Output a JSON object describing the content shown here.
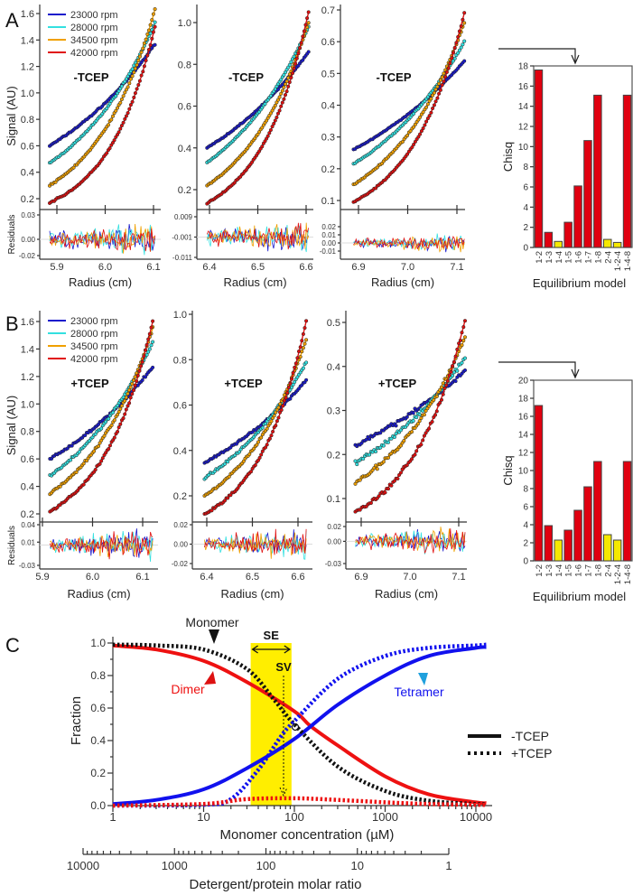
{
  "panels": {
    "a": "A",
    "b": "B",
    "c": "C"
  },
  "chart_data": [
    {
      "id": "A1",
      "type": "scatter",
      "panel": "A",
      "annotation": "-TCEP",
      "xlabel": "Radius (cm)",
      "ylabel": "Signal (AU)",
      "residual_label": "Residuals",
      "xticks": [
        "5.9",
        "6.0",
        "6.1"
      ],
      "yticks": [
        "0.2",
        "0.4",
        "0.6",
        "0.8",
        "1.0",
        "1.2",
        "1.4",
        "1.6"
      ],
      "resid_ticks": [
        "0.03",
        "0.00",
        "-0.02"
      ],
      "r_range": [
        5.885,
        6.103
      ],
      "series": [
        {
          "name": "23000 rpm",
          "color": "#1a1acc",
          "start": 0.6,
          "end": 1.37
        },
        {
          "name": "28000 rpm",
          "color": "#33e0e0",
          "start": 0.47,
          "end": 1.53
        },
        {
          "name": "34500 rpm",
          "color": "#f0a000",
          "start": 0.3,
          "end": 1.63
        },
        {
          "name": "42000 rpm",
          "color": "#e01010",
          "start": 0.17,
          "end": 1.5
        }
      ]
    },
    {
      "id": "A2",
      "type": "scatter",
      "panel": "A",
      "annotation": "-TCEP",
      "xlabel": "Radius (cm)",
      "xticks": [
        "6.4",
        "6.5",
        "6.6"
      ],
      "yticks": [
        "0.2",
        "0.4",
        "0.6",
        "0.8",
        "1.0"
      ],
      "resid_ticks": [
        "0.009",
        "-0.001",
        "-0.011"
      ],
      "r_range": [
        6.395,
        6.605
      ],
      "series": [
        {
          "name": "23000 rpm",
          "color": "#1a1acc",
          "start": 0.4,
          "end": 0.86
        },
        {
          "name": "28000 rpm",
          "color": "#33e0e0",
          "start": 0.33,
          "end": 0.98
        },
        {
          "name": "34500 rpm",
          "color": "#f0a000",
          "start": 0.22,
          "end": 1.0
        },
        {
          "name": "42000 rpm",
          "color": "#e01010",
          "start": 0.135,
          "end": 1.05
        }
      ]
    },
    {
      "id": "A3",
      "type": "scatter",
      "panel": "A",
      "annotation": "-TCEP",
      "xlabel": "Radius (cm)",
      "xticks": [
        "6.9",
        "7.0",
        "7.1"
      ],
      "yticks": [
        "0.1",
        "0.2",
        "0.3",
        "0.4",
        "0.5",
        "0.6",
        "0.7"
      ],
      "resid_ticks": [
        "0.02",
        "0.01",
        "0.00",
        "-0.01"
      ],
      "r_range": [
        6.89,
        7.115
      ],
      "series": [
        {
          "name": "23000 rpm",
          "color": "#1a1acc",
          "start": 0.26,
          "end": 0.54
        },
        {
          "name": "28000 rpm",
          "color": "#33e0e0",
          "start": 0.215,
          "end": 0.6
        },
        {
          "name": "34500 rpm",
          "color": "#f0a000",
          "start": 0.15,
          "end": 0.66
        },
        {
          "name": "42000 rpm",
          "color": "#e01010",
          "start": 0.095,
          "end": 0.69
        }
      ]
    },
    {
      "id": "B1",
      "type": "scatter",
      "panel": "B",
      "annotation": "+TCEP",
      "xlabel": "Radius (cm)",
      "ylabel": "Signal (AU)",
      "residual_label": "Residuals",
      "xticks": [
        "5.9",
        "6.0",
        "6.1"
      ],
      "yticks": [
        "0.2",
        "0.4",
        "0.6",
        "0.8",
        "1.0",
        "1.2",
        "1.4",
        "1.6"
      ],
      "resid_ticks": [
        "0.04",
        "0.01",
        "-0.03"
      ],
      "r_range": [
        5.915,
        6.12
      ],
      "series": [
        {
          "name": "23000 rpm",
          "color": "#1a1acc",
          "start": 0.6,
          "end": 1.27
        },
        {
          "name": "28000 rpm",
          "color": "#33e0e0",
          "start": 0.48,
          "end": 1.45
        },
        {
          "name": "34500 rpm",
          "color": "#f0a000",
          "start": 0.35,
          "end": 1.55
        },
        {
          "name": "42000 rpm",
          "color": "#e01010",
          "start": 0.22,
          "end": 1.6
        }
      ]
    },
    {
      "id": "B2",
      "type": "scatter",
      "panel": "B",
      "annotation": "+TCEP",
      "xlabel": "Radius (cm)",
      "xticks": [
        "6.4",
        "6.5",
        "6.6"
      ],
      "yticks": [
        "0.2",
        "0.4",
        "0.6",
        "0.8",
        "1.0"
      ],
      "resid_ticks": [
        "0.02",
        "0.00",
        "-0.02"
      ],
      "r_range": [
        6.395,
        6.618
      ],
      "series": [
        {
          "name": "23000 rpm",
          "color": "#1a1acc",
          "start": 0.345,
          "end": 0.71
        },
        {
          "name": "28000 rpm",
          "color": "#33e0e0",
          "start": 0.28,
          "end": 0.79
        },
        {
          "name": "34500 rpm",
          "color": "#f0a000",
          "start": 0.2,
          "end": 0.89
        },
        {
          "name": "42000 rpm",
          "color": "#e01010",
          "start": 0.12,
          "end": 0.97
        }
      ]
    },
    {
      "id": "B3",
      "type": "scatter",
      "panel": "B",
      "annotation": "+TCEP",
      "xlabel": "Radius (cm)",
      "xticks": [
        "6.9",
        "7.0",
        "7.1"
      ],
      "yticks": [
        "0.1",
        "0.2",
        "0.3",
        "0.4",
        "0.5"
      ],
      "resid_ticks": [
        "0.02",
        "0.00",
        "-0.03"
      ],
      "r_range": [
        6.888,
        7.113
      ],
      "series": [
        {
          "name": "23000 rpm",
          "color": "#1a1acc",
          "start": 0.22,
          "end": 0.39
        },
        {
          "name": "28000 rpm",
          "color": "#33e0e0",
          "start": 0.18,
          "end": 0.42
        },
        {
          "name": "34500 rpm",
          "color": "#f0a000",
          "start": 0.135,
          "end": 0.465
        },
        {
          "name": "42000 rpm",
          "color": "#e01010",
          "start": 0.07,
          "end": 0.505
        }
      ]
    },
    {
      "id": "barA",
      "type": "bar",
      "panel": "A",
      "ylabel": "Chisq",
      "xlabel": "Equilibrium model",
      "ylim": [
        0,
        18
      ],
      "yticks": [
        "0",
        "2",
        "4",
        "6",
        "8",
        "10",
        "12",
        "14",
        "16",
        "18"
      ],
      "categories": [
        "1-2",
        "1-3",
        "1-4",
        "1-5",
        "1-6",
        "1-7",
        "1-8",
        "2-4",
        "1-2-4",
        "1-4-8"
      ],
      "values": [
        17.6,
        1.5,
        0.6,
        2.5,
        6.1,
        10.6,
        15.1,
        0.8,
        0.5,
        15.1
      ],
      "colors": [
        "#e00010",
        "#e00010",
        "#f5e800",
        "#e00010",
        "#e00010",
        "#e00010",
        "#e00010",
        "#f5e800",
        "#f5e800",
        "#e00010"
      ]
    },
    {
      "id": "barB",
      "type": "bar",
      "panel": "B",
      "ylabel": "Chisq",
      "xlabel": "Equilibrium model",
      "ylim": [
        0,
        20
      ],
      "yticks": [
        "0",
        "2",
        "4",
        "6",
        "8",
        "10",
        "12",
        "14",
        "16",
        "18",
        "20"
      ],
      "categories": [
        "1-2",
        "1-3",
        "1-4",
        "1-5",
        "1-6",
        "1-7",
        "1-8",
        "2-4",
        "1-2-4",
        "1-4-8"
      ],
      "values": [
        17.2,
        3.9,
        2.3,
        3.4,
        5.6,
        8.2,
        11.0,
        2.9,
        2.3,
        11.0
      ],
      "colors": [
        "#e00010",
        "#e00010",
        "#f5e800",
        "#e00010",
        "#e00010",
        "#e00010",
        "#e00010",
        "#f5e800",
        "#f5e800",
        "#e00010"
      ]
    },
    {
      "id": "C",
      "type": "line",
      "panel": "C",
      "xscale": "log",
      "xlim": [
        1,
        13000
      ],
      "ylim": [
        0,
        1.0
      ],
      "xlabel": "Monomer concentration (µM)",
      "ylabel": "Fraction",
      "xticks": [
        "1",
        "10",
        "100",
        "1000",
        "10000"
      ],
      "yticks": [
        "0.0",
        "0.2",
        "0.4",
        "0.6",
        "0.8",
        "1.0"
      ],
      "secondary_axis": {
        "label": "Detergent/protein molar ratio",
        "ticks": [
          "10000",
          "1000",
          "100",
          "10",
          "1"
        ]
      },
      "band": {
        "label": "SE",
        "range": [
          33,
          93
        ],
        "color": "#ffee00"
      },
      "sv": {
        "label": "SV",
        "conc": 76
      },
      "annotations": {
        "monomer": "Monomer",
        "dimer": "Dimer",
        "tetramer": "Tetramer"
      },
      "legend": [
        {
          "label": "-TCEP",
          "style": "solid"
        },
        {
          "label": "+TCEP",
          "style": "dotted"
        }
      ],
      "series": [
        {
          "name": "Dimer -TCEP",
          "color": "#ee1111",
          "style": "solid",
          "points": [
            [
              1,
              0.985
            ],
            [
              3,
              0.96
            ],
            [
              10,
              0.89
            ],
            [
              30,
              0.76
            ],
            [
              100,
              0.58
            ],
            [
              150,
              0.49
            ],
            [
              300,
              0.37
            ],
            [
              1000,
              0.18
            ],
            [
              3000,
              0.07
            ],
            [
              10000,
              0.02
            ],
            [
              13000,
              0.015
            ]
          ]
        },
        {
          "name": "Tetramer -TCEP",
          "color": "#1111ee",
          "style": "solid",
          "points": [
            [
              1,
              0.01
            ],
            [
              3,
              0.035
            ],
            [
              10,
              0.1
            ],
            [
              30,
              0.23
            ],
            [
              100,
              0.41
            ],
            [
              300,
              0.62
            ],
            [
              1000,
              0.8
            ],
            [
              3000,
              0.92
            ],
            [
              10000,
              0.97
            ],
            [
              13000,
              0.975
            ]
          ]
        },
        {
          "name": "Monomer +TCEP",
          "color": "#111111",
          "style": "dotted",
          "points": [
            [
              1,
              0.99
            ],
            [
              3,
              0.985
            ],
            [
              10,
              0.96
            ],
            [
              30,
              0.84
            ],
            [
              60,
              0.65
            ],
            [
              100,
              0.5
            ],
            [
              300,
              0.24
            ],
            [
              1000,
              0.09
            ],
            [
              3000,
              0.03
            ],
            [
              10000,
              0.01
            ],
            [
              13000,
              0.01
            ]
          ]
        },
        {
          "name": "Tetramer +TCEP",
          "color": "#1111ee",
          "style": "dotted",
          "points": [
            [
              1,
              0
            ],
            [
              10,
              0.005
            ],
            [
              20,
              0.04
            ],
            [
              40,
              0.22
            ],
            [
              70,
              0.42
            ],
            [
              100,
              0.52
            ],
            [
              300,
              0.78
            ],
            [
              1000,
              0.92
            ],
            [
              3000,
              0.97
            ],
            [
              10000,
              0.985
            ],
            [
              13000,
              0.99
            ]
          ]
        },
        {
          "name": "Dimer +TCEP",
          "color": "#ee1111",
          "style": "dotted",
          "points": [
            [
              1,
              0
            ],
            [
              10,
              0.01
            ],
            [
              30,
              0.04
            ],
            [
              100,
              0.045
            ],
            [
              300,
              0.035
            ],
            [
              1000,
              0.02
            ],
            [
              3000,
              0.01
            ],
            [
              10000,
              0.005
            ],
            [
              13000,
              0.005
            ]
          ]
        }
      ]
    }
  ]
}
